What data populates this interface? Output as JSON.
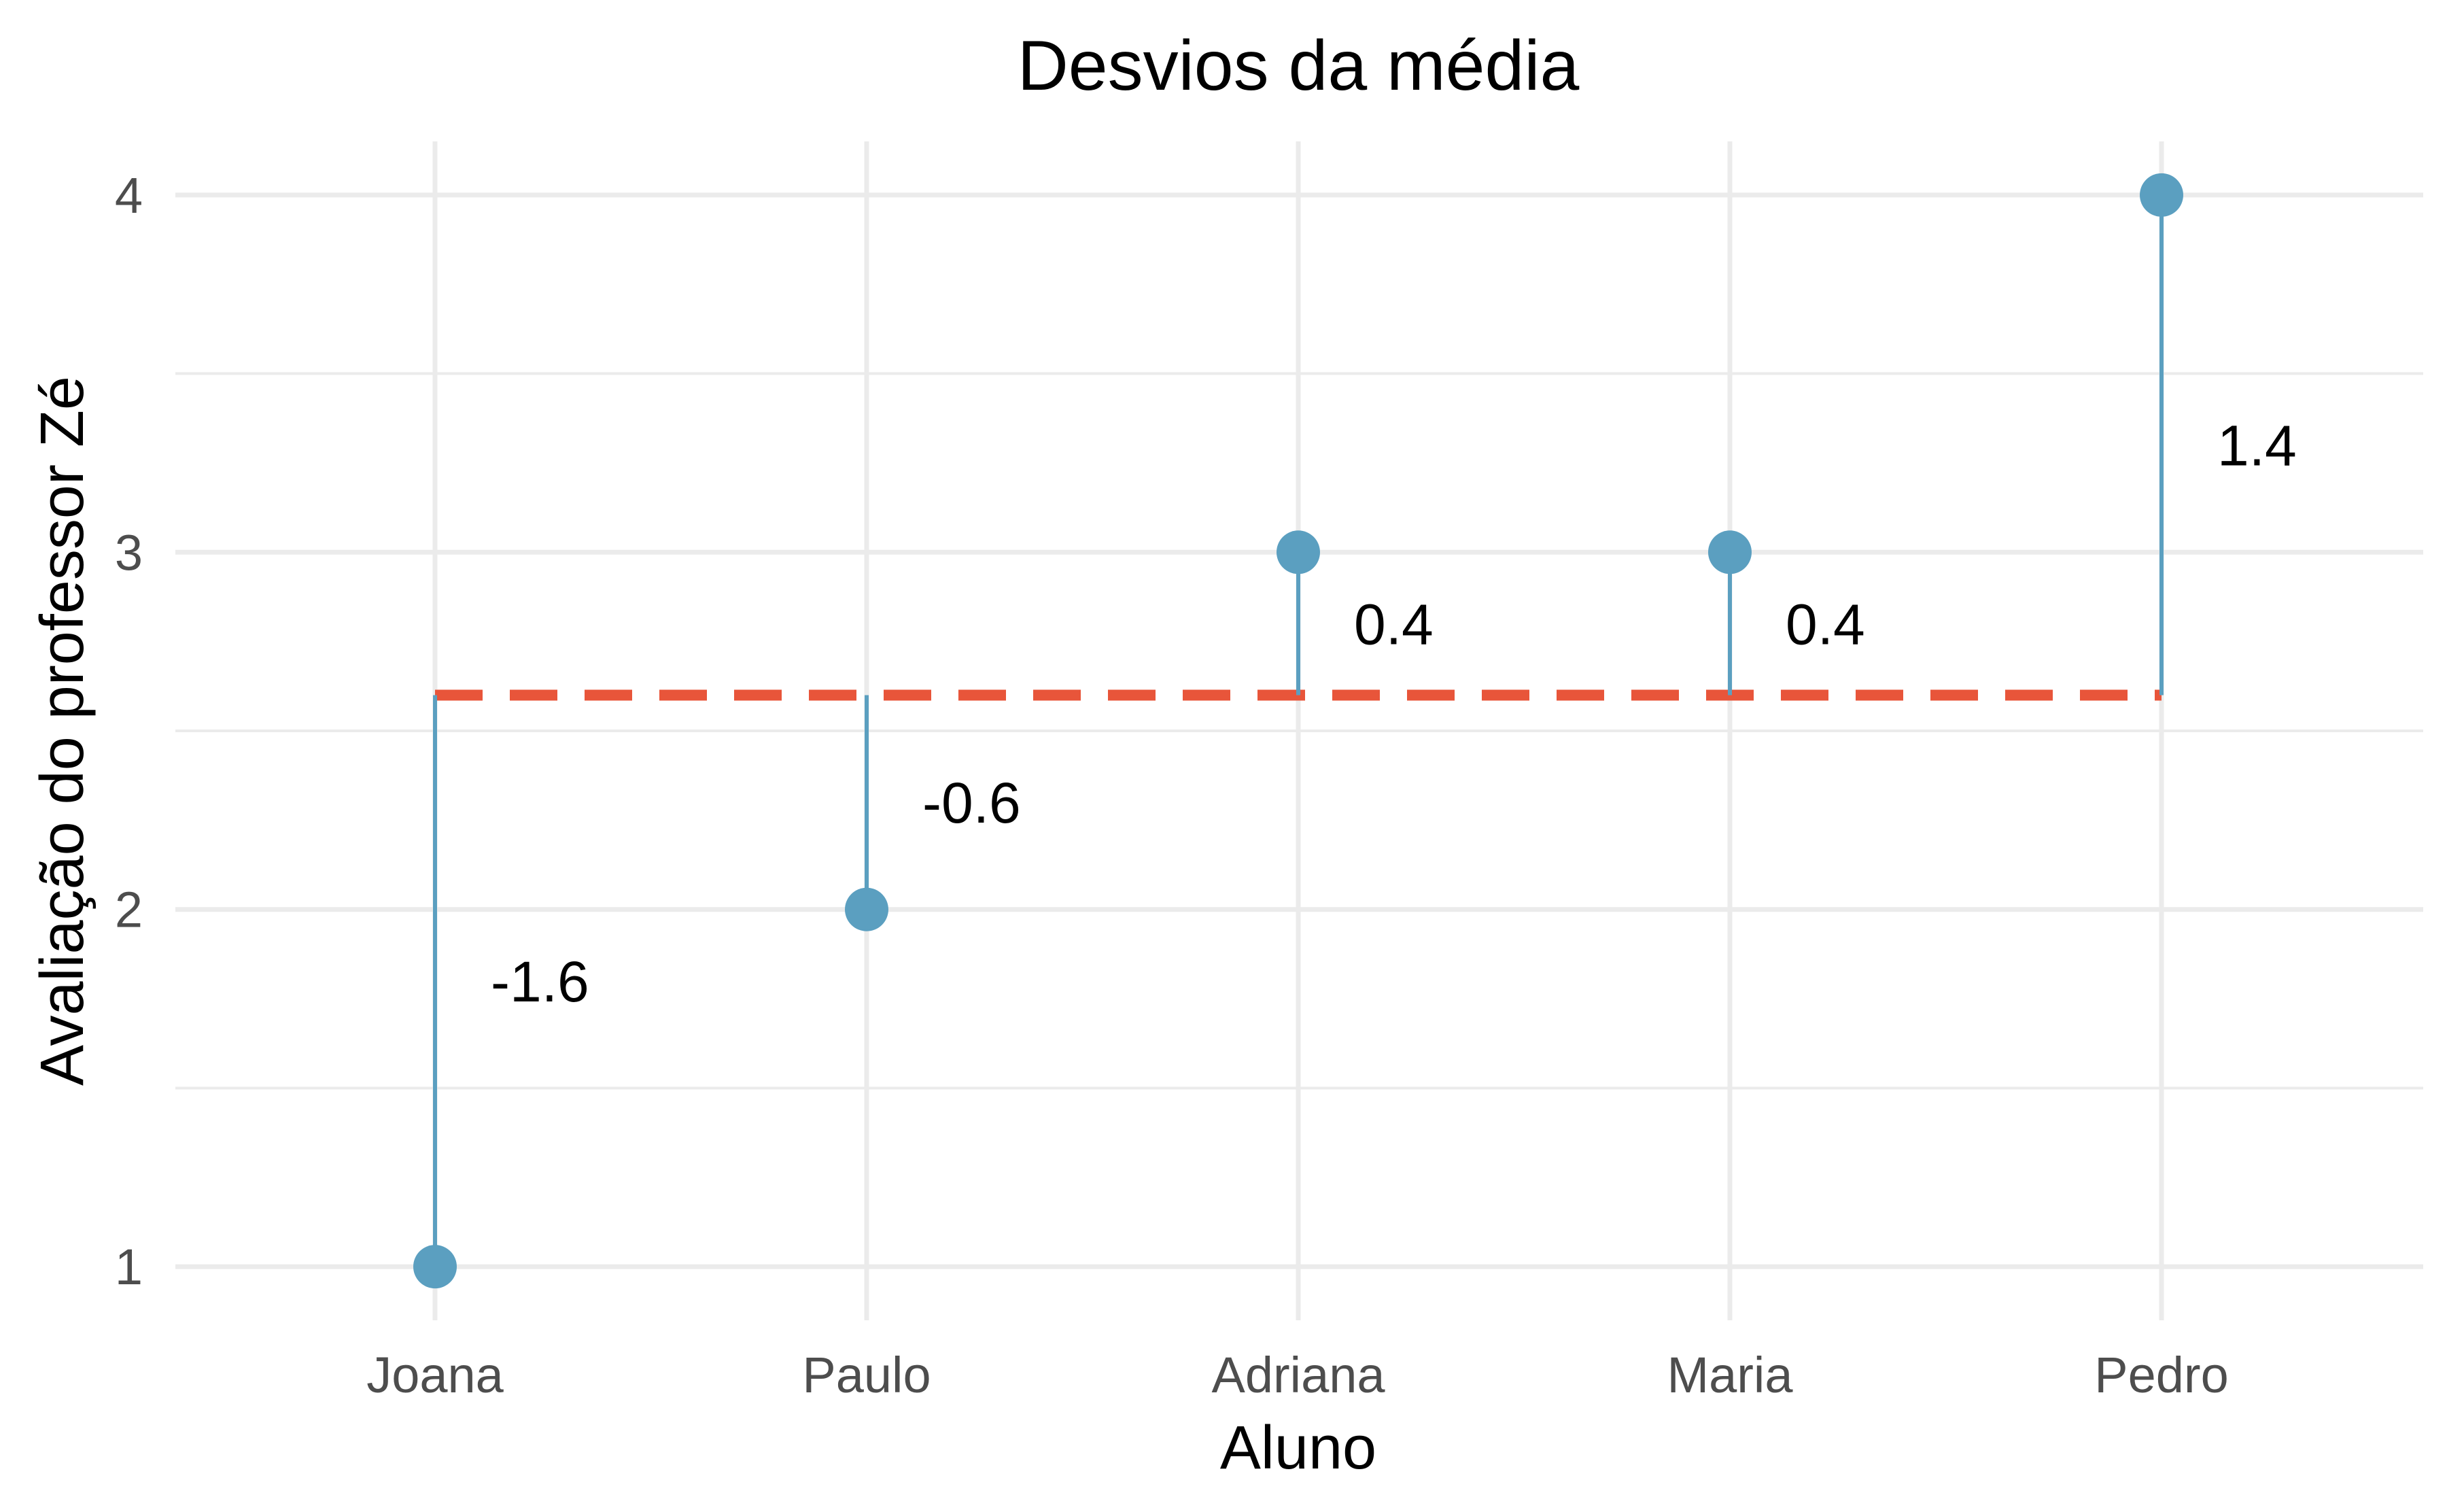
{
  "chart_data": {
    "type": "lollipop",
    "title": "Desvios da média",
    "xlabel": "Aluno",
    "ylabel": "Avaliação do professor Zé",
    "categories": [
      "Joana",
      "Paulo",
      "Adriana",
      "Maria",
      "Pedro"
    ],
    "values": [
      1,
      2,
      3,
      3,
      4
    ],
    "mean": 2.6,
    "deviation_labels": [
      "-1.6",
      "-0.6",
      "0.4",
      "0.4",
      "1.4"
    ],
    "yticks": [
      1,
      2,
      3,
      4
    ],
    "ylim": [
      0.85,
      4.15
    ],
    "grid": true,
    "colors": {
      "points": "#5b9fc0",
      "mean_line": "#e8553a",
      "grid": "#ebebeb"
    }
  }
}
